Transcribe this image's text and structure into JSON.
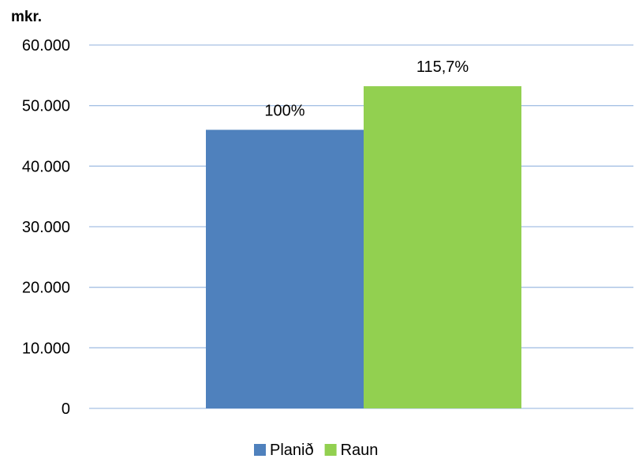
{
  "chart_data": {
    "type": "bar",
    "ylabel": "mkr.",
    "categories": [
      ""
    ],
    "series": [
      {
        "name": "Planið",
        "values": [
          46000
        ],
        "label": "100%",
        "color": "#4F81BD"
      },
      {
        "name": "Raun",
        "values": [
          53200
        ],
        "label": "115,7%",
        "color": "#92D050"
      }
    ],
    "ylim": [
      0,
      60000
    ],
    "yticks": [
      0,
      10000,
      20000,
      30000,
      40000,
      50000,
      60000
    ],
    "ytick_labels": [
      "0",
      "10.000",
      "20.000",
      "30.000",
      "40.000",
      "50.000",
      "60.000"
    ],
    "grid": true,
    "grid_color": "#A6C1E4",
    "legend": "bottom"
  }
}
